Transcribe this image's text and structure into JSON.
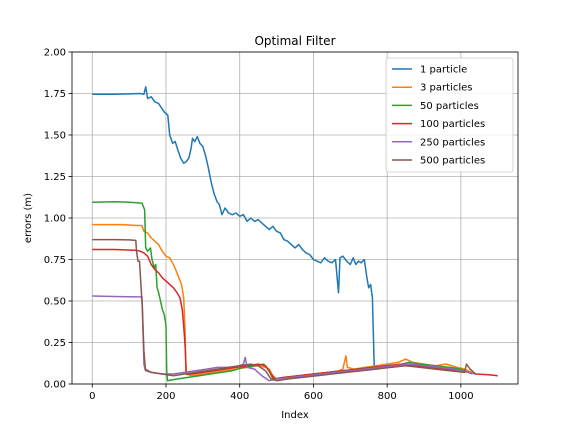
{
  "chart_data": {
    "type": "line",
    "title": "Optimal Filter",
    "xlabel": "Index",
    "ylabel": "errors (m)",
    "xlim": [
      -55,
      1155
    ],
    "ylim": [
      0,
      2
    ],
    "xticks": [
      "0",
      "200",
      "400",
      "600",
      "800",
      "1000"
    ],
    "yticks": [
      "0.00",
      "0.25",
      "0.50",
      "0.75",
      "1.00",
      "1.25",
      "1.50",
      "1.75",
      "2.00"
    ],
    "grid": true,
    "legend_position": "top-right",
    "series": [
      {
        "name": "1 particle",
        "color": "#1f77b4",
        "points": [
          [
            0,
            1.745
          ],
          [
            60,
            1.745
          ],
          [
            110,
            1.748
          ],
          [
            130,
            1.75
          ],
          [
            140,
            1.745
          ],
          [
            145,
            1.79
          ],
          [
            150,
            1.72
          ],
          [
            160,
            1.73
          ],
          [
            170,
            1.7
          ],
          [
            180,
            1.69
          ],
          [
            195,
            1.64
          ],
          [
            205,
            1.62
          ],
          [
            210,
            1.5
          ],
          [
            218,
            1.45
          ],
          [
            225,
            1.46
          ],
          [
            232,
            1.41
          ],
          [
            240,
            1.36
          ],
          [
            248,
            1.33
          ],
          [
            255,
            1.34
          ],
          [
            262,
            1.36
          ],
          [
            268,
            1.42
          ],
          [
            272,
            1.48
          ],
          [
            278,
            1.46
          ],
          [
            285,
            1.49
          ],
          [
            292,
            1.45
          ],
          [
            300,
            1.43
          ],
          [
            308,
            1.37
          ],
          [
            315,
            1.3
          ],
          [
            322,
            1.22
          ],
          [
            330,
            1.15
          ],
          [
            338,
            1.1
          ],
          [
            345,
            1.08
          ],
          [
            352,
            1.02
          ],
          [
            360,
            1.06
          ],
          [
            370,
            1.03
          ],
          [
            380,
            1.02
          ],
          [
            390,
            1.03
          ],
          [
            400,
            1.01
          ],
          [
            410,
            1.02
          ],
          [
            420,
            0.98
          ],
          [
            430,
            1.0
          ],
          [
            440,
            0.98
          ],
          [
            450,
            0.99
          ],
          [
            460,
            0.97
          ],
          [
            470,
            0.95
          ],
          [
            480,
            0.93
          ],
          [
            490,
            0.95
          ],
          [
            500,
            0.92
          ],
          [
            510,
            0.91
          ],
          [
            520,
            0.87
          ],
          [
            530,
            0.86
          ],
          [
            540,
            0.84
          ],
          [
            550,
            0.82
          ],
          [
            560,
            0.84
          ],
          [
            570,
            0.81
          ],
          [
            580,
            0.79
          ],
          [
            590,
            0.78
          ],
          [
            600,
            0.75
          ],
          [
            610,
            0.74
          ],
          [
            620,
            0.73
          ],
          [
            630,
            0.76
          ],
          [
            640,
            0.74
          ],
          [
            650,
            0.73
          ],
          [
            660,
            0.75
          ],
          [
            668,
            0.55
          ],
          [
            672,
            0.76
          ],
          [
            680,
            0.77
          ],
          [
            690,
            0.74
          ],
          [
            700,
            0.72
          ],
          [
            708,
            0.76
          ],
          [
            715,
            0.72
          ],
          [
            722,
            0.74
          ],
          [
            730,
            0.73
          ],
          [
            738,
            0.75
          ],
          [
            745,
            0.64
          ],
          [
            750,
            0.58
          ],
          [
            755,
            0.6
          ],
          [
            760,
            0.52
          ],
          [
            765,
            0.11
          ],
          [
            770,
            0.09
          ],
          [
            780,
            0.1
          ]
        ]
      },
      {
        "name": "3 particles",
        "color": "#ff7f0e",
        "points": [
          [
            0,
            0.96
          ],
          [
            80,
            0.96
          ],
          [
            120,
            0.955
          ],
          [
            135,
            0.955
          ],
          [
            140,
            0.92
          ],
          [
            150,
            0.91
          ],
          [
            160,
            0.88
          ],
          [
            170,
            0.86
          ],
          [
            180,
            0.84
          ],
          [
            190,
            0.8
          ],
          [
            200,
            0.77
          ],
          [
            210,
            0.76
          ],
          [
            220,
            0.72
          ],
          [
            228,
            0.68
          ],
          [
            235,
            0.64
          ],
          [
            242,
            0.6
          ],
          [
            248,
            0.52
          ],
          [
            252,
            0.3
          ],
          [
            254,
            0.06
          ],
          [
            270,
            0.05
          ],
          [
            300,
            0.06
          ],
          [
            330,
            0.07
          ],
          [
            360,
            0.08
          ],
          [
            390,
            0.09
          ],
          [
            420,
            0.1
          ],
          [
            450,
            0.11
          ],
          [
            470,
            0.1
          ],
          [
            480,
            0.09
          ],
          [
            490,
            0.05
          ],
          [
            500,
            0.03
          ],
          [
            530,
            0.04
          ],
          [
            560,
            0.05
          ],
          [
            600,
            0.06
          ],
          [
            640,
            0.07
          ],
          [
            670,
            0.08
          ],
          [
            680,
            0.09
          ],
          [
            688,
            0.17
          ],
          [
            692,
            0.1
          ],
          [
            710,
            0.09
          ],
          [
            740,
            0.1
          ],
          [
            770,
            0.11
          ],
          [
            800,
            0.12
          ],
          [
            830,
            0.13
          ],
          [
            850,
            0.15
          ],
          [
            870,
            0.13
          ],
          [
            900,
            0.12
          ],
          [
            930,
            0.11
          ],
          [
            960,
            0.12
          ],
          [
            990,
            0.1
          ],
          [
            1010,
            0.09
          ],
          [
            1030,
            0.07
          ]
        ]
      },
      {
        "name": "50 particles",
        "color": "#2ca02c",
        "points": [
          [
            0,
            1.095
          ],
          [
            60,
            1.098
          ],
          [
            100,
            1.095
          ],
          [
            135,
            1.09
          ],
          [
            142,
            1.05
          ],
          [
            145,
            0.82
          ],
          [
            150,
            0.8
          ],
          [
            158,
            0.82
          ],
          [
            162,
            0.75
          ],
          [
            168,
            0.7
          ],
          [
            172,
            0.72
          ],
          [
            176,
            0.58
          ],
          [
            180,
            0.55
          ],
          [
            185,
            0.5
          ],
          [
            190,
            0.45
          ],
          [
            195,
            0.42
          ],
          [
            198,
            0.38
          ],
          [
            200,
            0.35
          ],
          [
            202,
            0.08
          ],
          [
            204,
            0.02
          ],
          [
            230,
            0.03
          ],
          [
            260,
            0.04
          ],
          [
            290,
            0.05
          ],
          [
            320,
            0.06
          ],
          [
            350,
            0.07
          ],
          [
            380,
            0.08
          ],
          [
            410,
            0.1
          ],
          [
            440,
            0.11
          ],
          [
            465,
            0.12
          ],
          [
            480,
            0.08
          ],
          [
            490,
            0.03
          ],
          [
            520,
            0.04
          ],
          [
            560,
            0.05
          ],
          [
            600,
            0.06
          ],
          [
            640,
            0.07
          ],
          [
            680,
            0.08
          ],
          [
            720,
            0.09
          ],
          [
            760,
            0.1
          ],
          [
            800,
            0.11
          ],
          [
            840,
            0.12
          ],
          [
            860,
            0.13
          ],
          [
            890,
            0.12
          ],
          [
            930,
            0.11
          ],
          [
            970,
            0.1
          ],
          [
            1000,
            0.09
          ],
          [
            1030,
            0.06
          ]
        ]
      },
      {
        "name": "100 particles",
        "color": "#d62728",
        "points": [
          [
            0,
            0.81
          ],
          [
            60,
            0.81
          ],
          [
            120,
            0.805
          ],
          [
            130,
            0.8
          ],
          [
            140,
            0.79
          ],
          [
            150,
            0.77
          ],
          [
            160,
            0.72
          ],
          [
            170,
            0.69
          ],
          [
            180,
            0.67
          ],
          [
            190,
            0.64
          ],
          [
            200,
            0.62
          ],
          [
            210,
            0.6
          ],
          [
            220,
            0.58
          ],
          [
            230,
            0.55
          ],
          [
            238,
            0.52
          ],
          [
            244,
            0.45
          ],
          [
            248,
            0.35
          ],
          [
            252,
            0.22
          ],
          [
            255,
            0.06
          ],
          [
            270,
            0.06
          ],
          [
            300,
            0.07
          ],
          [
            330,
            0.08
          ],
          [
            360,
            0.09
          ],
          [
            390,
            0.1
          ],
          [
            420,
            0.11
          ],
          [
            450,
            0.12
          ],
          [
            470,
            0.11
          ],
          [
            485,
            0.06
          ],
          [
            495,
            0.03
          ],
          [
            520,
            0.04
          ],
          [
            560,
            0.05
          ],
          [
            600,
            0.06
          ],
          [
            640,
            0.07
          ],
          [
            680,
            0.08
          ],
          [
            720,
            0.09
          ],
          [
            760,
            0.1
          ],
          [
            800,
            0.11
          ],
          [
            840,
            0.12
          ],
          [
            880,
            0.11
          ],
          [
            920,
            0.1
          ],
          [
            960,
            0.09
          ],
          [
            1000,
            0.08
          ],
          [
            1040,
            0.06
          ],
          [
            1080,
            0.055
          ],
          [
            1100,
            0.05
          ]
        ]
      },
      {
        "name": "250 particles",
        "color": "#9467bd",
        "points": [
          [
            0,
            0.53
          ],
          [
            60,
            0.527
          ],
          [
            120,
            0.525
          ],
          [
            135,
            0.525
          ],
          [
            138,
            0.3
          ],
          [
            140,
            0.12
          ],
          [
            144,
            0.08
          ],
          [
            160,
            0.07
          ],
          [
            190,
            0.06
          ],
          [
            220,
            0.06
          ],
          [
            250,
            0.07
          ],
          [
            280,
            0.08
          ],
          [
            310,
            0.09
          ],
          [
            340,
            0.1
          ],
          [
            370,
            0.1
          ],
          [
            400,
            0.11
          ],
          [
            410,
            0.12
          ],
          [
            415,
            0.16
          ],
          [
            420,
            0.1
          ],
          [
            440,
            0.09
          ],
          [
            460,
            0.05
          ],
          [
            480,
            0.02
          ],
          [
            500,
            0.03
          ],
          [
            540,
            0.04
          ],
          [
            580,
            0.05
          ],
          [
            620,
            0.06
          ],
          [
            660,
            0.07
          ],
          [
            700,
            0.08
          ],
          [
            740,
            0.09
          ],
          [
            780,
            0.1
          ],
          [
            820,
            0.11
          ],
          [
            860,
            0.12
          ],
          [
            900,
            0.11
          ],
          [
            940,
            0.1
          ],
          [
            980,
            0.09
          ],
          [
            1020,
            0.07
          ],
          [
            1040,
            0.06
          ]
        ]
      },
      {
        "name": "500 particles",
        "color": "#8c564b",
        "points": [
          [
            0,
            0.87
          ],
          [
            60,
            0.87
          ],
          [
            100,
            0.868
          ],
          [
            118,
            0.865
          ],
          [
            120,
            0.8
          ],
          [
            124,
            0.74
          ],
          [
            128,
            0.74
          ],
          [
            132,
            0.6
          ],
          [
            136,
            0.45
          ],
          [
            140,
            0.2
          ],
          [
            144,
            0.09
          ],
          [
            160,
            0.07
          ],
          [
            190,
            0.06
          ],
          [
            220,
            0.05
          ],
          [
            250,
            0.06
          ],
          [
            280,
            0.07
          ],
          [
            310,
            0.08
          ],
          [
            340,
            0.09
          ],
          [
            370,
            0.1
          ],
          [
            400,
            0.11
          ],
          [
            430,
            0.12
          ],
          [
            450,
            0.11
          ],
          [
            470,
            0.08
          ],
          [
            485,
            0.03
          ],
          [
            500,
            0.02
          ],
          [
            530,
            0.03
          ],
          [
            570,
            0.04
          ],
          [
            610,
            0.05
          ],
          [
            650,
            0.06
          ],
          [
            690,
            0.07
          ],
          [
            730,
            0.08
          ],
          [
            770,
            0.09
          ],
          [
            810,
            0.1
          ],
          [
            850,
            0.11
          ],
          [
            890,
            0.1
          ],
          [
            930,
            0.09
          ],
          [
            970,
            0.08
          ],
          [
            1010,
            0.07
          ],
          [
            1015,
            0.12
          ],
          [
            1025,
            0.09
          ],
          [
            1040,
            0.06
          ]
        ]
      }
    ]
  }
}
